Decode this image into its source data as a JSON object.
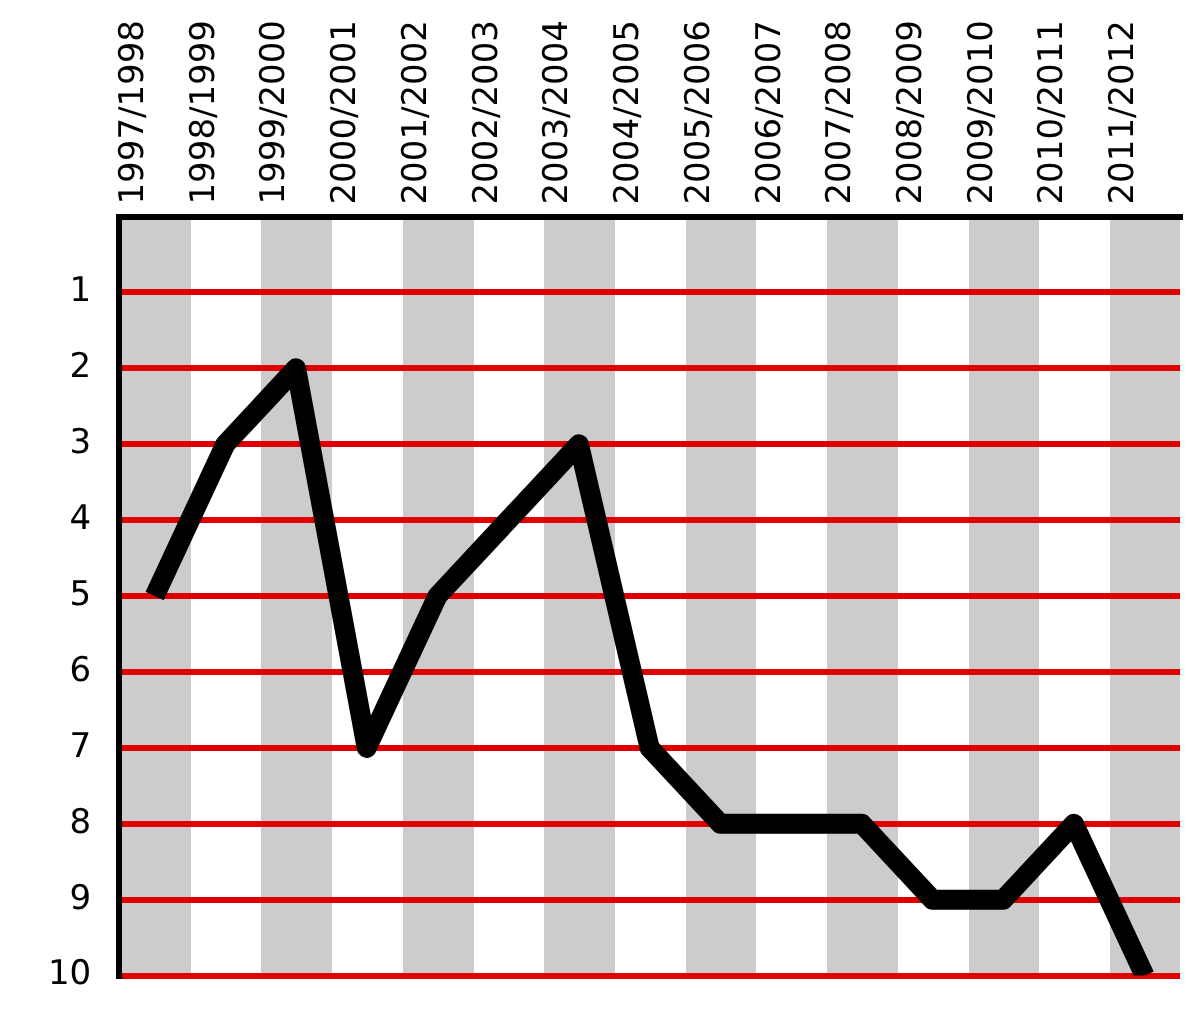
{
  "chart_data": {
    "type": "line",
    "categories": [
      "1997/1998",
      "1998/1999",
      "1999/2000",
      "2000/2001",
      "2001/2002",
      "2002/2003",
      "2003/2004",
      "2004/2005",
      "2005/2006",
      "2006/2007",
      "2007/2008",
      "2008/2009",
      "2009/2010",
      "2010/2011",
      "2011/2012"
    ],
    "series": [
      {
        "color": "#000000",
        "values": [
          5,
          3,
          2,
          7,
          5,
          4,
          3,
          7,
          8,
          8,
          8,
          9,
          9,
          8,
          10
        ]
      }
    ],
    "ylim": [
      10,
      0
    ],
    "yticks": [
      1,
      2,
      3,
      4,
      5,
      6,
      7,
      8,
      9,
      10
    ],
    "grid": "y",
    "legend": false,
    "marker": "none",
    "line_style": "solid"
  }
}
